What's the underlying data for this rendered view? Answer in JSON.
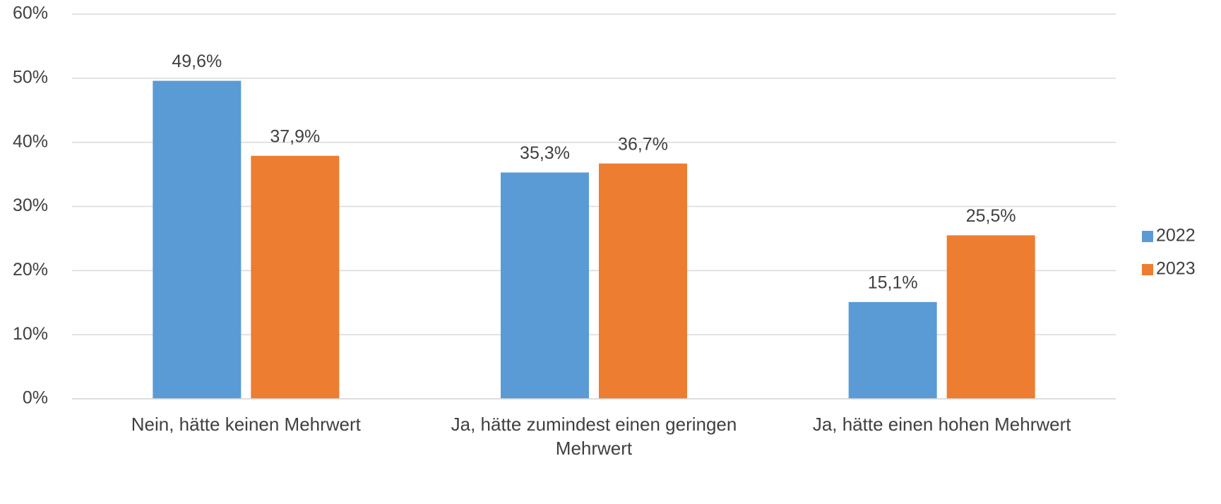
{
  "chart_data": {
    "type": "bar",
    "categories": [
      "Nein, hätte keinen Mehrwert",
      "Ja, hätte zumindest einen geringen Mehrwert",
      "Ja, hätte einen hohen Mehrwert"
    ],
    "series": [
      {
        "name": "2022",
        "color": "#5b9bd5",
        "values": [
          49.6,
          35.3,
          15.1
        ],
        "value_labels": [
          "49,6%",
          "35,3%",
          "15,1%"
        ]
      },
      {
        "name": "2023",
        "color": "#ed7d31",
        "values": [
          37.9,
          36.7,
          25.5
        ],
        "value_labels": [
          "37,9%",
          "36,7%",
          "25,5%"
        ]
      }
    ],
    "ylim": [
      0,
      60
    ],
    "yticks": [
      {
        "value": 0,
        "label": "0%"
      },
      {
        "value": 10,
        "label": "10%"
      },
      {
        "value": 20,
        "label": "20%"
      },
      {
        "value": 30,
        "label": "30%"
      },
      {
        "value": 40,
        "label": "40%"
      },
      {
        "value": 50,
        "label": "50%"
      },
      {
        "value": 60,
        "label": "60%"
      }
    ],
    "grid": true,
    "legend": "right"
  }
}
